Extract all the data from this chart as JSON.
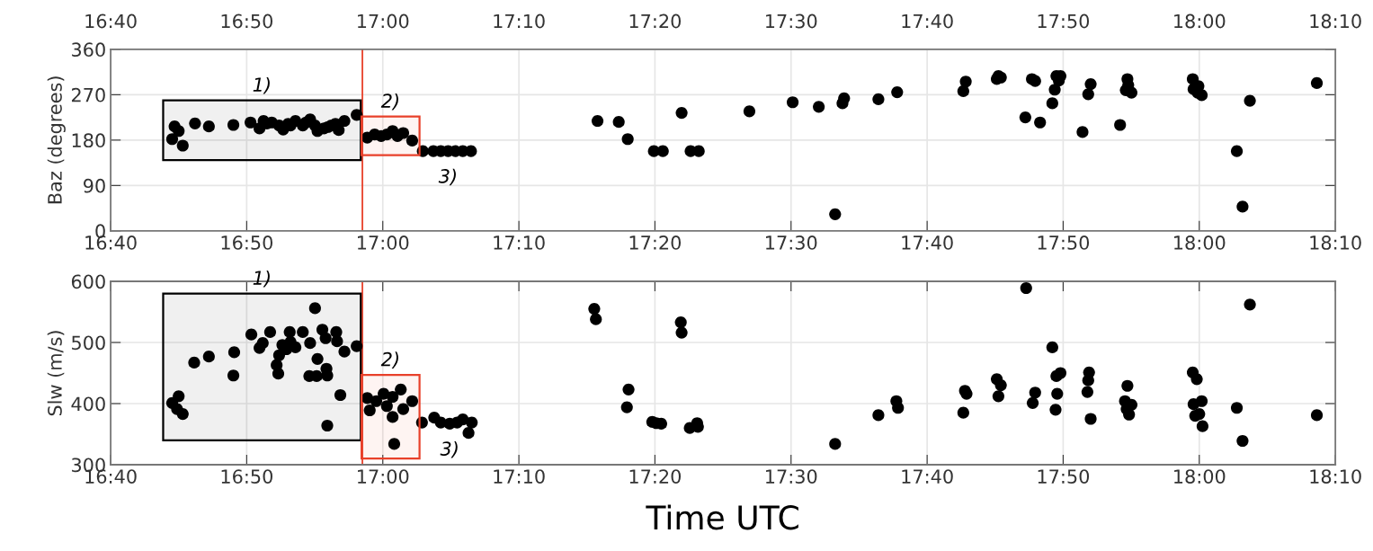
{
  "chart_data": [
    {
      "type": "scatter",
      "ylabel": "Baz (degrees)",
      "marker": "circle",
      "grid": true,
      "x": [
        16.745,
        16.75,
        16.742,
        16.755,
        16.77,
        16.787,
        16.817,
        16.838,
        16.849,
        16.854,
        16.858,
        16.864,
        16.873,
        16.878,
        16.884,
        16.887,
        16.893,
        16.902,
        16.906,
        16.911,
        16.917,
        16.92,
        16.928,
        16.933,
        16.937,
        16.942,
        16.946,
        16.953,
        16.968,
        16.981,
        16.99,
        16.998,
        17.005,
        17.012,
        17.018,
        17.025,
        17.036,
        17.049,
        17.062,
        17.071,
        17.08,
        17.089,
        17.098,
        17.108,
        17.263,
        17.289,
        17.3,
        17.332,
        17.343,
        17.366,
        17.377,
        17.387,
        17.449,
        17.502,
        17.534,
        17.554,
        17.563,
        17.565,
        17.607,
        17.63,
        17.711,
        17.714,
        17.752,
        17.754,
        17.757,
        17.787,
        17.795,
        17.799,
        17.805,
        17.82,
        17.823,
        17.825,
        17.83,
        17.828,
        17.857,
        17.864,
        17.867,
        17.903,
        17.91,
        17.912,
        17.917,
        17.913,
        17.992,
        17.993,
        17.999,
        18.003,
        17.998,
        18.046,
        18.053,
        18.062,
        18.144
      ],
      "series": [
        {
          "color": "#000000",
          "values": [
            207,
            198,
            182,
            169,
            213,
            207,
            210,
            215,
            203,
            218,
            213,
            215,
            209,
            201,
            212,
            209,
            218,
            209,
            215,
            221,
            209,
            198,
            203,
            206,
            209,
            212,
            200,
            218,
            230,
            185,
            191,
            188,
            191,
            198,
            188,
            194,
            179,
            158,
            158,
            158,
            158,
            158,
            158,
            158,
            218,
            216,
            182,
            158,
            158,
            234,
            158,
            158,
            237,
            255,
            246,
            33,
            253,
            263,
            261,
            275,
            277,
            296,
            301,
            307,
            304,
            225,
            301,
            297,
            215,
            253,
            280,
            307,
            307,
            298,
            196,
            271,
            291,
            210,
            279,
            301,
            274,
            289,
            301,
            281,
            287,
            269,
            274,
            158,
            48,
            258,
            293
          ]
        }
      ],
      "xlim": [
        16.6667,
        18.1667
      ],
      "xticks": [
        {
          "value": 16.6667,
          "label": "16:40"
        },
        {
          "value": 16.8333,
          "label": "16:50"
        },
        {
          "value": 17,
          "label": "17:00"
        },
        {
          "value": 17.1667,
          "label": "17:10"
        },
        {
          "value": 17.3333,
          "label": "17:20"
        },
        {
          "value": 17.5,
          "label": "17:30"
        },
        {
          "value": 17.6667,
          "label": "17:40"
        },
        {
          "value": 17.8333,
          "label": "17:50"
        },
        {
          "value": 18,
          "label": "18:00"
        },
        {
          "value": 18.1667,
          "label": "18:10"
        }
      ],
      "x2lim": [
        16.6667,
        18.1667
      ],
      "x2ticks": [
        {
          "value": 16.6667,
          "label": "16:40"
        },
        {
          "value": 16.8333,
          "label": "16:50"
        },
        {
          "value": 17,
          "label": "17:00"
        },
        {
          "value": 17.1667,
          "label": "17:10"
        },
        {
          "value": 17.3333,
          "label": "17:20"
        },
        {
          "value": 17.5,
          "label": "17:30"
        },
        {
          "value": 17.6667,
          "label": "17:40"
        },
        {
          "value": 17.8333,
          "label": "17:50"
        },
        {
          "value": 18,
          "label": "18:00"
        },
        {
          "value": 18.1667,
          "label": "18:10"
        }
      ],
      "ylim": [
        0,
        360
      ],
      "yticks": [
        0,
        90,
        180,
        270,
        360
      ],
      "ref_lines": [
        {
          "axis": "x",
          "value": 16.975,
          "color": "#e8402a"
        }
      ],
      "bands": [
        {
          "axis": "x",
          "from": 16.731,
          "to": 16.973,
          "color": "#000000",
          "label": "1)"
        },
        {
          "axis": "x",
          "from": 16.974,
          "to": 17.045,
          "color": "#e8402a",
          "label": "2)"
        }
      ],
      "annotations": [
        {
          "text": "3)",
          "x": 17.08,
          "y": 158
        }
      ]
    },
    {
      "type": "scatter",
      "ylabel": "Slw (m/s)",
      "xlabel": "Time UTC",
      "marker": "circle",
      "grid": true,
      "x": [
        16.75,
        16.742,
        16.748,
        16.755,
        16.769,
        16.787,
        16.818,
        16.817,
        16.839,
        16.849,
        16.853,
        16.862,
        16.87,
        16.872,
        16.873,
        16.877,
        16.882,
        16.886,
        16.887,
        16.893,
        16.902,
        16.911,
        16.91,
        16.917,
        16.92,
        16.919,
        16.926,
        16.93,
        16.931,
        16.932,
        16.932,
        16.943,
        16.944,
        16.948,
        16.953,
        16.968,
        16.981,
        16.984,
        16.992,
        17.001,
        17.005,
        17.012,
        17.012,
        17.014,
        17.022,
        17.025,
        17.036,
        17.048,
        17.063,
        17.071,
        17.082,
        17.091,
        17.098,
        17.105,
        17.109,
        17.259,
        17.261,
        17.301,
        17.299,
        17.33,
        17.341,
        17.335,
        17.365,
        17.366,
        17.376,
        17.385,
        17.386,
        17.554,
        17.607,
        17.629,
        17.631,
        17.711,
        17.713,
        17.715,
        17.752,
        17.757,
        17.754,
        17.788,
        17.799,
        17.796,
        17.82,
        17.824,
        17.826,
        17.825,
        17.83,
        17.863,
        17.864,
        17.865,
        17.867,
        17.912,
        17.909,
        17.917,
        17.911,
        17.914,
        17.992,
        17.997,
        17.993,
        18.003,
        17.995,
        18.0,
        18.004,
        18.046,
        18.053,
        18.062,
        18.144
      ],
      "series": [
        {
          "color": "#000000",
          "values": [
            412,
            401,
            391,
            383,
            467,
            477,
            484,
            446,
            513,
            491,
            499,
            517,
            463,
            449,
            479,
            496,
            489,
            517,
            501,
            492,
            517,
            499,
            445,
            556,
            473,
            445,
            521,
            507,
            457,
            446,
            364,
            517,
            502,
            414,
            485,
            494,
            409,
            389,
            404,
            416,
            396,
            411,
            378,
            334,
            423,
            391,
            404,
            369,
            377,
            369,
            367,
            369,
            374,
            352,
            369,
            555,
            538,
            423,
            394,
            370,
            367,
            368,
            533,
            516,
            360,
            368,
            362,
            334,
            381,
            404,
            393,
            385,
            421,
            416,
            440,
            430,
            412,
            589,
            418,
            401,
            492,
            390,
            416,
            445,
            450,
            419,
            438,
            451,
            375,
            429,
            404,
            398,
            391,
            382,
            451,
            440,
            399,
            404,
            380,
            383,
            363,
            393,
            339,
            562,
            381
          ]
        }
      ],
      "xlim": [
        16.6667,
        18.1667
      ],
      "xticks": [
        {
          "value": 16.6667,
          "label": "16:40"
        },
        {
          "value": 16.8333,
          "label": "16:50"
        },
        {
          "value": 17,
          "label": "17:00"
        },
        {
          "value": 17.1667,
          "label": "17:10"
        },
        {
          "value": 17.3333,
          "label": "17:20"
        },
        {
          "value": 17.5,
          "label": "17:30"
        },
        {
          "value": 17.6667,
          "label": "17:40"
        },
        {
          "value": 17.8333,
          "label": "17:50"
        },
        {
          "value": 18,
          "label": "18:00"
        },
        {
          "value": 18.1667,
          "label": "18:10"
        }
      ],
      "ylim": [
        300,
        600
      ],
      "yticks": [
        300,
        400,
        500,
        600
      ],
      "ref_lines": [
        {
          "axis": "x",
          "value": 16.975,
          "color": "#e8402a"
        }
      ],
      "bands": [
        {
          "axis": "x",
          "from": 16.731,
          "to": 16.973,
          "color": "#000000",
          "label": "1)"
        },
        {
          "axis": "x",
          "from": 16.974,
          "to": 17.045,
          "color": "#e8402a",
          "label": "2)"
        }
      ],
      "annotations": [
        {
          "text": "3)",
          "x": 17.082,
          "y": 367
        }
      ]
    }
  ]
}
